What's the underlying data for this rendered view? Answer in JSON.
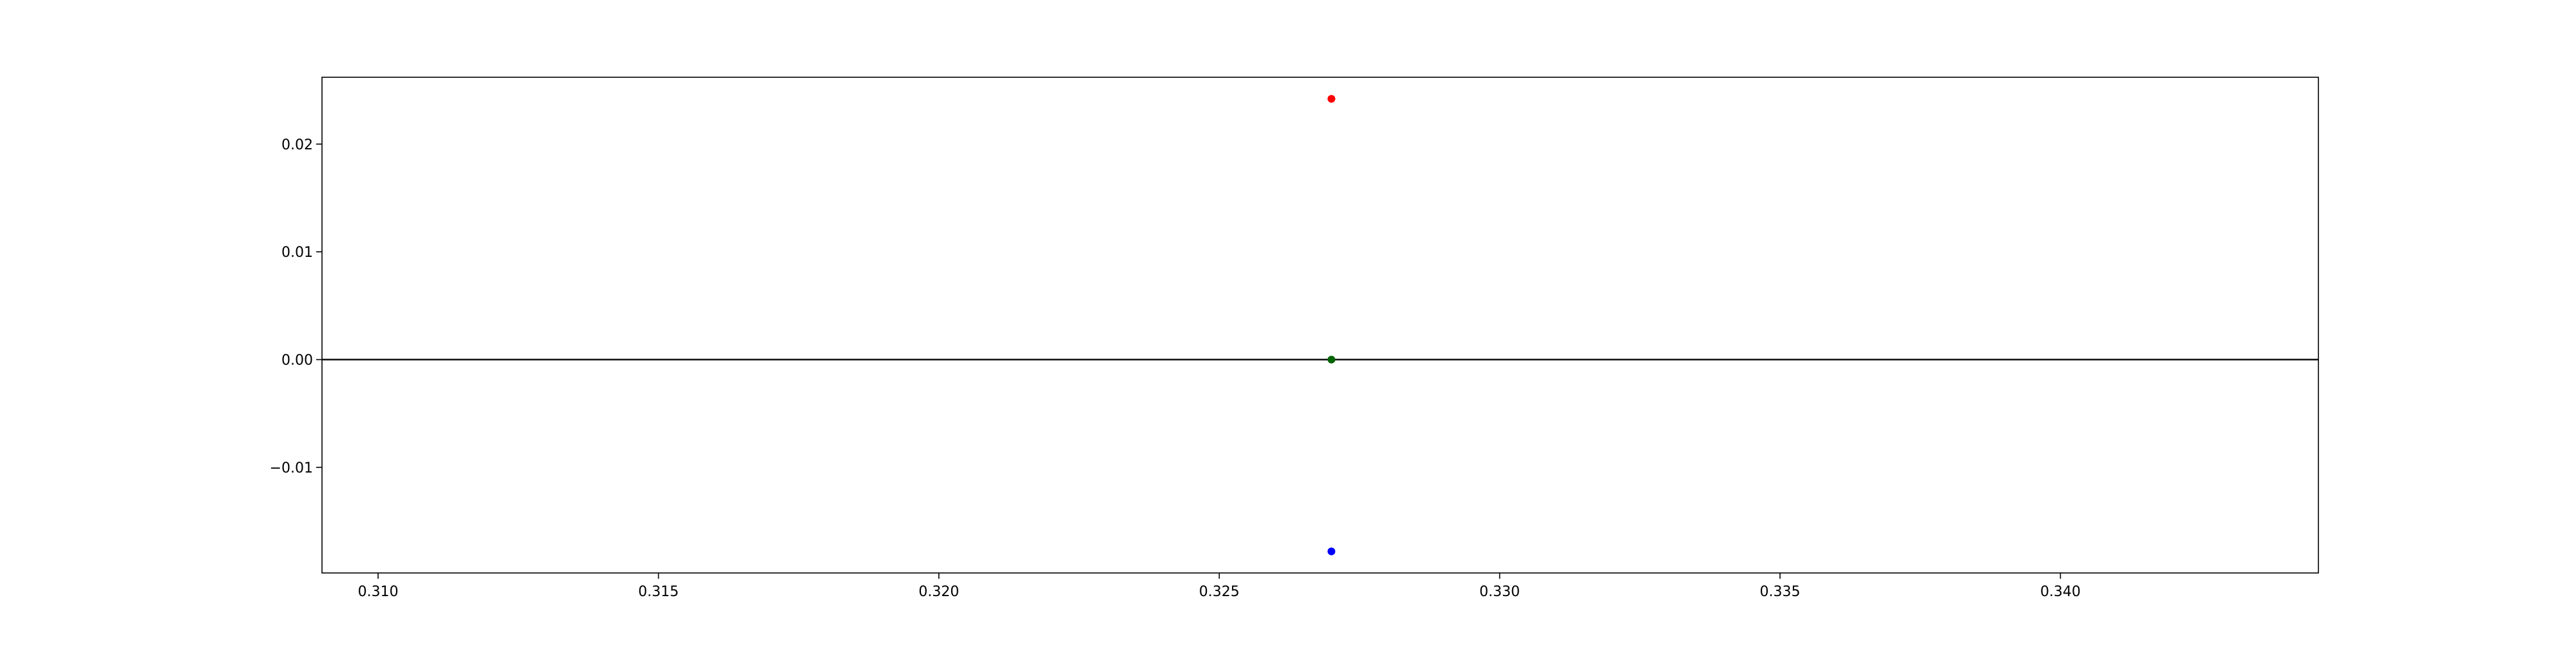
{
  "chart_data": {
    "type": "scatter",
    "title": "",
    "xlabel": "",
    "ylabel": "",
    "xlim": [
      0.309,
      0.3446
    ],
    "ylim": [
      -0.0198,
      0.0262
    ],
    "x_ticks": [
      0.31,
      0.315,
      0.32,
      0.325,
      0.33,
      0.335,
      0.34
    ],
    "x_tick_labels": [
      "0.310",
      "0.315",
      "0.320",
      "0.325",
      "0.330",
      "0.335",
      "0.340"
    ],
    "y_ticks": [
      -0.01,
      0.0,
      0.01,
      0.02
    ],
    "y_tick_labels": [
      "−0.01",
      "0.00",
      "0.01",
      "0.02"
    ],
    "grid": false,
    "reference_line": {
      "y": 0,
      "color": "#000000"
    },
    "points": [
      {
        "x": 0.327,
        "y": 0.0242,
        "color": "#ff0000"
      },
      {
        "x": 0.327,
        "y": 0.0,
        "color": "#006400"
      },
      {
        "x": 0.327,
        "y": -0.0178,
        "color": "#0000ff"
      }
    ]
  }
}
